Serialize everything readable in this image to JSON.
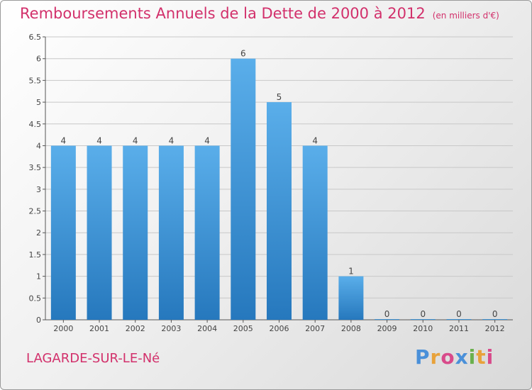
{
  "title": "Remboursements Annuels de la Dette de 2000 à 2012",
  "unit": "(en milliers d'€)",
  "commune": "LAGARDE-SUR-LE-Né",
  "logo": {
    "text": "Proxiti",
    "letters": [
      {
        "ch": "P",
        "color": "#4a90d9"
      },
      {
        "ch": "r",
        "color": "#e8a23a"
      },
      {
        "ch": "o",
        "color": "#d84a8a"
      },
      {
        "ch": "x",
        "color": "#4a90d9"
      },
      {
        "ch": "i",
        "color": "#6ab04c"
      },
      {
        "ch": "t",
        "color": "#e8a23a"
      },
      {
        "ch": "i",
        "color": "#d84a8a"
      }
    ]
  },
  "colors": {
    "title": "#d2306b",
    "bar_top": "#5aaeea",
    "bar_bottom": "#2678bd",
    "grid": "#c8c8c8",
    "axis": "#555555"
  },
  "chart_data": {
    "type": "bar",
    "title": "Remboursements Annuels de la Dette de 2000 à 2012",
    "xlabel": "",
    "ylabel": "",
    "categories": [
      "2000",
      "2001",
      "2002",
      "2003",
      "2004",
      "2005",
      "2006",
      "2007",
      "2008",
      "2009",
      "2010",
      "2011",
      "2012"
    ],
    "values": [
      4,
      4,
      4,
      4,
      4,
      6,
      5,
      4,
      1,
      0,
      0,
      0,
      0
    ],
    "data_labels": [
      "4",
      "4",
      "4",
      "4",
      "4",
      "6",
      "5",
      "4",
      "1",
      "0",
      "0",
      "0",
      "0"
    ],
    "ylim": [
      0,
      6.5
    ],
    "yticks": [
      0,
      0.5,
      1,
      1.5,
      2,
      2.5,
      3,
      3.5,
      4,
      4.5,
      5,
      5.5,
      6,
      6.5
    ],
    "ytick_labels": [
      "0",
      "0.5",
      "1",
      "1.5",
      "2",
      "2.5",
      "3",
      "3.5",
      "4",
      "4.5",
      "5",
      "5.5",
      "6",
      "6.5"
    ],
    "grid": true,
    "legend": "none"
  }
}
